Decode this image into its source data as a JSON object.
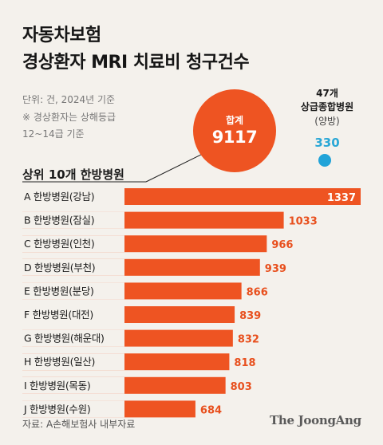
{
  "title": {
    "line1": "자동차보험",
    "line2": "경상환자 MRI 치료비 청구건수"
  },
  "notes": {
    "unit": "단위: 건, 2024년 기준",
    "footnote1": "※ 경상환자는 상해등급",
    "footnote2": "12~14급 기준"
  },
  "total": {
    "label": "합계",
    "value": "9117"
  },
  "general_hospitals": {
    "line1": "47개",
    "line2": "상급종합병원",
    "line3": "(양방)",
    "value": "330"
  },
  "colors": {
    "bar": "#ee5422",
    "general_dot": "#21a3d8",
    "value_outside": "#e8501e",
    "value_inside": "#ffffff"
  },
  "source": "자료: A손해보험사 내부자료",
  "brand": "The JoongAng",
  "chart_data": {
    "type": "bar",
    "orientation": "horizontal",
    "title": "상위 10개 한방병원",
    "categories": [
      "A 한방병원(강남)",
      "B 한방병원(잠실)",
      "C 한방병원(인천)",
      "D 한방병원(부천)",
      "E 한방병원(분당)",
      "F 한방병원(대전)",
      "G 한방병원(해운대)",
      "H 한방병원(일산)",
      "I 한방병원(목동)",
      "J 한방병원(수원)"
    ],
    "values": [
      1337,
      1033,
      966,
      939,
      866,
      839,
      832,
      818,
      803,
      684
    ]
  }
}
